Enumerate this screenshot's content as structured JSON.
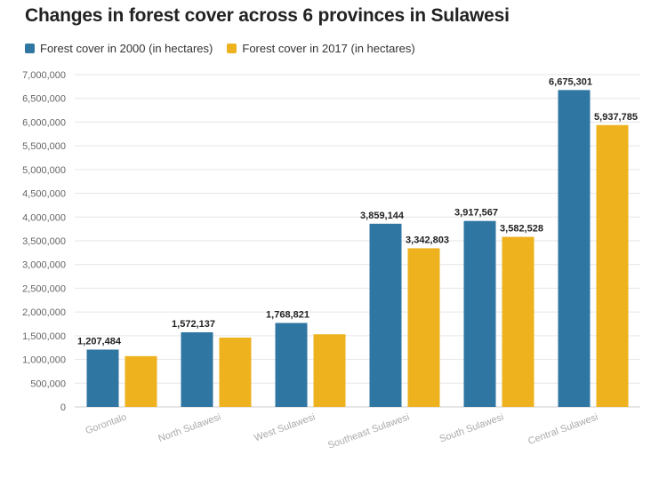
{
  "chart_data": {
    "type": "bar",
    "title": "Changes in forest cover across 6 provinces in Sulawesi",
    "xlabel": "",
    "ylabel": "",
    "ylim": [
      0,
      7000000
    ],
    "yticks": [
      0,
      500000,
      1000000,
      1500000,
      2000000,
      2500000,
      3000000,
      3500000,
      4000000,
      4500000,
      5000000,
      5500000,
      6000000,
      6500000,
      7000000
    ],
    "ytick_labels": [
      "0",
      "500,000",
      "1,000,000",
      "1,500,000",
      "2,000,000",
      "2,500,000",
      "3,000,000",
      "3,500,000",
      "4,000,000",
      "4,500,000",
      "5,000,000",
      "5,500,000",
      "6,000,000",
      "6,500,000",
      "7,000,000"
    ],
    "grid": true,
    "legend": "top-left",
    "categories": [
      "Gorontalo",
      "North Sulawesi",
      "West Sulawesi",
      "Southeast Sulawesi",
      "South Sulawesi",
      "Central Sulawesi"
    ],
    "series": [
      {
        "name": "Forest cover in 2000 (in hectares)",
        "color": "#2f76a2",
        "values": [
          1207484,
          1572137,
          1768821,
          3859144,
          3917567,
          6675301
        ],
        "labels": [
          "1,207,484",
          "1,572,137",
          "1,768,821",
          "3,859,144",
          "3,917,567",
          "6,675,301"
        ]
      },
      {
        "name": "Forest cover in 2017 (in hectares)",
        "color": "#edb21e",
        "values": [
          1070000,
          1460000,
          1530000,
          3342803,
          3582528,
          5937785
        ],
        "labels": [
          "",
          "",
          "",
          "3,342,803",
          "3,582,528",
          "5,937,785"
        ]
      }
    ]
  }
}
